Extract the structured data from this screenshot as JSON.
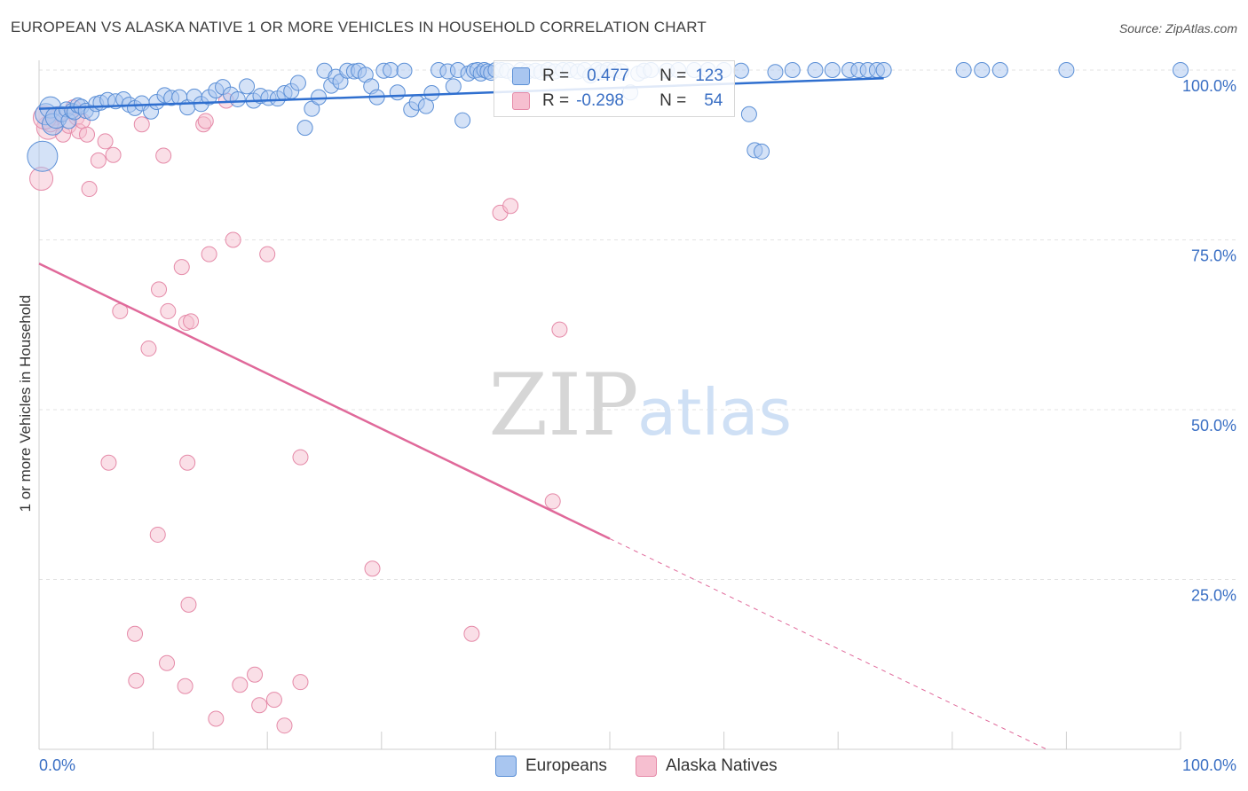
{
  "header": {
    "title": "EUROPEAN VS ALASKA NATIVE 1 OR MORE VEHICLES IN HOUSEHOLD CORRELATION CHART",
    "source": "Source: ZipAtlas.com"
  },
  "watermark": {
    "zip": "ZIP",
    "atlas": "atlas"
  },
  "legend": {
    "europeans": {
      "r_label": "R =",
      "r_value": "0.477",
      "n_label": "N =",
      "n_value": "123"
    },
    "alaska": {
      "r_label": "R =",
      "r_value": "-0.298",
      "n_label": "N =",
      "n_value": "54"
    }
  },
  "bottom_legend": {
    "europeans": "Europeans",
    "alaska": "Alaska Natives"
  },
  "colors": {
    "blue_fill": "#a9c6f0",
    "blue_stroke": "#5b8fd6",
    "blue_line": "#2f6fcf",
    "pink_fill": "#f6bfd0",
    "pink_stroke": "#e58aa8",
    "pink_line": "#e0699a",
    "tick_text": "#3a6fc4"
  },
  "chart_data": {
    "type": "scatter",
    "title": "EUROPEAN VS ALASKA NATIVE 1 OR MORE VEHICLES IN HOUSEHOLD CORRELATION CHART",
    "xlabel": "",
    "ylabel": "1 or more Vehicles in Household",
    "xlim": [
      0,
      100
    ],
    "ylim": [
      0,
      100
    ],
    "x_tick_labels": [
      "0.0%",
      "100.0%"
    ],
    "y_tick_labels": [
      "25.0%",
      "50.0%",
      "75.0%",
      "100.0%"
    ],
    "y_ticks": [
      25,
      50,
      75,
      100
    ],
    "grid": true,
    "series": [
      {
        "name": "Europeans",
        "r": 0.477,
        "n": 123,
        "trend": {
          "x": [
            0,
            74
          ],
          "y": [
            94.3,
            98.8
          ]
        },
        "points": [
          [
            0.3,
            87.3
          ],
          [
            0.6,
            93.5
          ],
          [
            1.0,
            94.5
          ],
          [
            1.2,
            92.0
          ],
          [
            1.5,
            93.0
          ],
          [
            2.0,
            93.5
          ],
          [
            2.4,
            94.2
          ],
          [
            2.6,
            92.5
          ],
          [
            2.9,
            94.0
          ],
          [
            3.1,
            93.8
          ],
          [
            3.4,
            94.8
          ],
          [
            3.7,
            94.6
          ],
          [
            4.1,
            94.0
          ],
          [
            4.6,
            93.7
          ],
          [
            5.0,
            95.0
          ],
          [
            5.4,
            95.2
          ],
          [
            6.0,
            95.6
          ],
          [
            6.7,
            95.4
          ],
          [
            7.4,
            95.7
          ],
          [
            7.9,
            94.9
          ],
          [
            8.4,
            94.4
          ],
          [
            9.0,
            95.1
          ],
          [
            9.8,
            93.9
          ],
          [
            10.3,
            95.3
          ],
          [
            11.0,
            96.3
          ],
          [
            11.6,
            95.9
          ],
          [
            12.3,
            96.0
          ],
          [
            13.0,
            94.5
          ],
          [
            13.6,
            96.1
          ],
          [
            14.2,
            95.0
          ],
          [
            14.9,
            96.0
          ],
          [
            15.5,
            97.0
          ],
          [
            16.1,
            97.5
          ],
          [
            16.8,
            96.4
          ],
          [
            17.4,
            95.7
          ],
          [
            18.2,
            97.6
          ],
          [
            18.8,
            95.5
          ],
          [
            19.4,
            96.2
          ],
          [
            20.1,
            95.9
          ],
          [
            20.9,
            95.8
          ],
          [
            21.5,
            96.6
          ],
          [
            22.1,
            96.9
          ],
          [
            22.7,
            98.1
          ],
          [
            23.3,
            91.5
          ],
          [
            23.9,
            94.3
          ],
          [
            24.5,
            96.0
          ],
          [
            25.0,
            99.9
          ],
          [
            25.6,
            97.7
          ],
          [
            26.0,
            99.0
          ],
          [
            26.4,
            98.3
          ],
          [
            27.0,
            99.9
          ],
          [
            27.6,
            99.8
          ],
          [
            28.0,
            99.9
          ],
          [
            28.6,
            99.3
          ],
          [
            29.1,
            97.6
          ],
          [
            29.6,
            96.0
          ],
          [
            30.2,
            99.9
          ],
          [
            30.8,
            100.0
          ],
          [
            31.4,
            96.7
          ],
          [
            32.0,
            99.9
          ],
          [
            32.6,
            94.2
          ],
          [
            33.1,
            95.2
          ],
          [
            33.9,
            94.7
          ],
          [
            34.4,
            96.6
          ],
          [
            35.0,
            100.0
          ],
          [
            35.8,
            99.8
          ],
          [
            36.3,
            97.6
          ],
          [
            36.7,
            100.0
          ],
          [
            37.1,
            92.6
          ],
          [
            37.6,
            99.5
          ],
          [
            38.1,
            99.9
          ],
          [
            38.4,
            100.0
          ],
          [
            38.7,
            99.5
          ],
          [
            39.0,
            100.0
          ],
          [
            39.3,
            99.8
          ],
          [
            39.6,
            99.6
          ],
          [
            40.0,
            100.0
          ],
          [
            40.5,
            100.0
          ],
          [
            41.0,
            99.9
          ],
          [
            41.7,
            99.3
          ],
          [
            42.2,
            100.0
          ],
          [
            42.8,
            99.8
          ],
          [
            43.5,
            99.9
          ],
          [
            44.0,
            99.7
          ],
          [
            44.6,
            100.0
          ],
          [
            45.2,
            99.8
          ],
          [
            45.9,
            100.0
          ],
          [
            46.5,
            100.0
          ],
          [
            47.2,
            99.8
          ],
          [
            47.8,
            100.0
          ],
          [
            48.3,
            99.2
          ],
          [
            48.9,
            100.0
          ],
          [
            49.3,
            99.7
          ],
          [
            49.8,
            100.0
          ],
          [
            50.4,
            100.0
          ],
          [
            51.0,
            99.8
          ],
          [
            51.8,
            96.7
          ],
          [
            52.5,
            99.5
          ],
          [
            53.0,
            99.9
          ],
          [
            53.6,
            100.0
          ],
          [
            55.0,
            99.9
          ],
          [
            56.0,
            100.0
          ],
          [
            57.4,
            100.0
          ],
          [
            58.6,
            100.0
          ],
          [
            60.0,
            100.0
          ],
          [
            61.5,
            99.9
          ],
          [
            62.2,
            93.5
          ],
          [
            62.7,
            88.2
          ],
          [
            63.3,
            88.0
          ],
          [
            64.5,
            99.7
          ],
          [
            66.0,
            100.0
          ],
          [
            68.0,
            100.0
          ],
          [
            69.5,
            100.0
          ],
          [
            71.0,
            100.0
          ],
          [
            71.8,
            100.0
          ],
          [
            72.6,
            100.0
          ],
          [
            73.4,
            100.0
          ],
          [
            74.0,
            100.0
          ],
          [
            81.0,
            100.0
          ],
          [
            82.6,
            100.0
          ],
          [
            84.2,
            100.0
          ],
          [
            90.0,
            100.0
          ],
          [
            100.0,
            100.0
          ]
        ],
        "sizes_note": "large markers at low x"
      },
      {
        "name": "Alaska Natives",
        "r": -0.298,
        "n": 54,
        "trend": {
          "x": [
            0,
            50
          ],
          "y": [
            71.5,
            31.0
          ]
        },
        "trend_dashed": {
          "x": [
            50,
            100
          ],
          "y": [
            31.0,
            -9.5
          ]
        },
        "points": [
          [
            0.2,
            84.0
          ],
          [
            0.8,
            91.5
          ],
          [
            1.4,
            93.0
          ],
          [
            1.7,
            93.5
          ],
          [
            2.1,
            90.5
          ],
          [
            2.6,
            91.8
          ],
          [
            3.0,
            94.5
          ],
          [
            3.3,
            93.0
          ],
          [
            3.5,
            91.0
          ],
          [
            3.8,
            92.5
          ],
          [
            4.2,
            90.5
          ],
          [
            4.4,
            82.5
          ],
          [
            5.2,
            86.7
          ],
          [
            5.8,
            89.5
          ],
          [
            6.5,
            87.5
          ],
          [
            9.0,
            92.0
          ],
          [
            10.9,
            87.4
          ],
          [
            14.4,
            92.0
          ],
          [
            14.6,
            92.5
          ],
          [
            16.4,
            95.5
          ],
          [
            12.5,
            71.0
          ],
          [
            10.5,
            67.7
          ],
          [
            7.1,
            64.5
          ],
          [
            11.3,
            64.5
          ],
          [
            12.9,
            62.8
          ],
          [
            13.3,
            63.0
          ],
          [
            9.6,
            59.0
          ],
          [
            14.9,
            72.9
          ],
          [
            17.0,
            75.0
          ],
          [
            20.0,
            72.9
          ],
          [
            22.9,
            43.0
          ],
          [
            6.1,
            42.2
          ],
          [
            13.0,
            42.2
          ],
          [
            10.4,
            31.6
          ],
          [
            29.2,
            26.6
          ],
          [
            13.1,
            21.3
          ],
          [
            8.4,
            17.0
          ],
          [
            11.2,
            12.7
          ],
          [
            8.5,
            10.1
          ],
          [
            12.8,
            9.3
          ],
          [
            17.6,
            9.5
          ],
          [
            18.9,
            11.0
          ],
          [
            19.3,
            6.5
          ],
          [
            20.6,
            7.3
          ],
          [
            21.5,
            3.5
          ],
          [
            22.9,
            9.9
          ],
          [
            15.5,
            4.5
          ],
          [
            37.9,
            17.0
          ],
          [
            40.4,
            79.0
          ],
          [
            41.3,
            80.0
          ],
          [
            45.0,
            36.5
          ],
          [
            45.6,
            61.8
          ],
          [
            1.0,
            92.0
          ],
          [
            0.5,
            93.0
          ]
        ]
      }
    ]
  }
}
